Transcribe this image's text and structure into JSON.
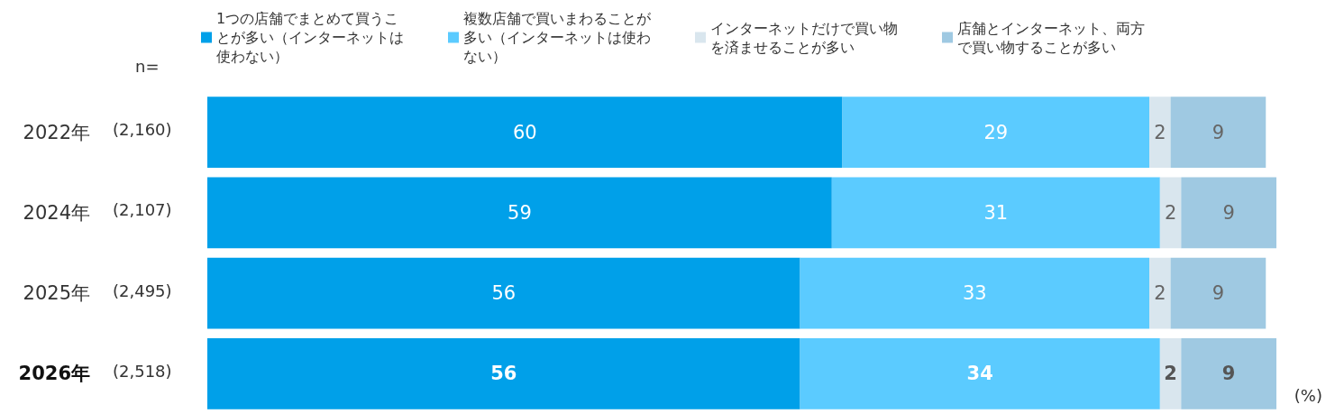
{
  "chart_data": {
    "type": "bar",
    "stacked": true,
    "orientation": "horizontal",
    "data_labels": true,
    "legend": "top",
    "tick_labels": "y",
    "categories": [
      "2022年",
      "2024年",
      "2025年",
      "2026年"
    ],
    "series": [
      {
        "name": "1つの店舗でまとめて買うことが多い（インターネットは使わない）",
        "color": "#00a0e9",
        "values": [
          60,
          59,
          56,
          56
        ]
      },
      {
        "name": "複数店舗で買いまわることが多い（インターネットは使わない）",
        "color": "#5bcbff",
        "values": [
          29,
          31,
          33,
          34
        ]
      },
      {
        "name": "インターネットだけで買い物を済ませることが多い",
        "color": "#d9e6ee",
        "values": [
          2,
          2,
          2,
          2
        ]
      },
      {
        "name": "店舗とインターネット、両方で買い物することが多い",
        "color": "#9fc9e2",
        "values": [
          9,
          9,
          9,
          9
        ]
      }
    ],
    "xlabel": "(%)",
    "annotations": [
      "n=",
      "(2,160)",
      "(2,107)",
      "(2,495)",
      "(2,518)"
    ]
  }
}
